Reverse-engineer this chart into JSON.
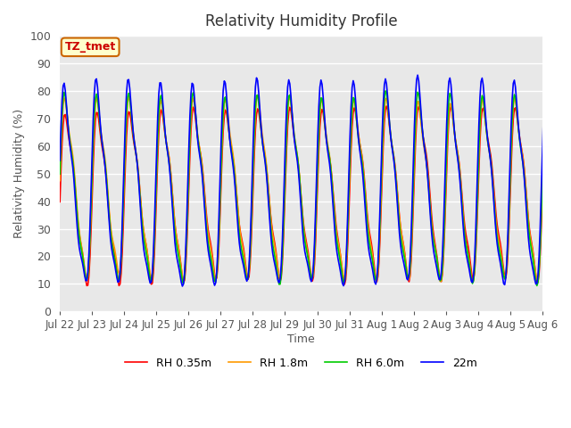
{
  "title": "Relativity Humidity Profile",
  "xlabel": "Time",
  "ylabel": "Relativity Humidity (%)",
  "ylim": [
    0,
    100
  ],
  "bg_color": "#e8e8e8",
  "fig_color": "#ffffff",
  "grid_color": "#ffffff",
  "annotation_text": "TZ_tmet",
  "annotation_bg": "#ffffcc",
  "annotation_border": "#cc6600",
  "annotation_text_color": "#cc0000",
  "tick_labels": [
    "Jul 22",
    "Jul 23",
    "Jul 24",
    "Jul 25",
    "Jul 26",
    "Jul 27",
    "Jul 28",
    "Jul 29",
    "Jul 30",
    "Jul 31",
    "Aug 1",
    "Aug 2",
    "Aug 3",
    "Aug 4",
    "Aug 5",
    "Aug 6"
  ],
  "legend_labels": [
    "RH 0.35m",
    "RH 1.8m",
    "RH 6.0m",
    "22m"
  ],
  "line_colors": [
    "#ff0000",
    "#ff9900",
    "#00cc00",
    "#0000ff"
  ],
  "line_width": 1.2,
  "num_points": 480,
  "seed": 42
}
